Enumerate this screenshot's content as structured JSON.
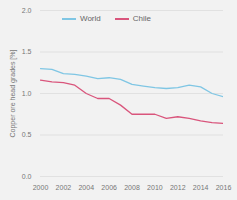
{
  "chart_data": {
    "type": "line",
    "x": [
      2000,
      2001,
      2002,
      2003,
      2004,
      2005,
      2006,
      2007,
      2008,
      2009,
      2010,
      2011,
      2012,
      2013,
      2014,
      2015,
      2016
    ],
    "series": [
      {
        "name": "World",
        "color": "#7fc6e4",
        "values": [
          1.3,
          1.29,
          1.24,
          1.23,
          1.21,
          1.18,
          1.19,
          1.17,
          1.11,
          1.09,
          1.07,
          1.06,
          1.07,
          1.1,
          1.08,
          1.0,
          0.96
        ]
      },
      {
        "name": "Chile",
        "color": "#d9557c",
        "values": [
          1.16,
          1.14,
          1.13,
          1.1,
          1.0,
          0.94,
          0.94,
          0.86,
          0.75,
          0.75,
          0.75,
          0.7,
          0.72,
          0.7,
          0.67,
          0.65,
          0.64
        ]
      }
    ],
    "y_label": "Copper ore head grades [%]",
    "xlim": [
      2000,
      2016
    ],
    "xticks": [
      2000,
      2002,
      2004,
      2006,
      2008,
      2010,
      2012,
      2014,
      2016
    ],
    "ylim": [
      0,
      2
    ],
    "yticks": [
      {
        "value": 0,
        "label": "0.0"
      },
      {
        "value": 0.5,
        "label": "0.5"
      },
      {
        "value": 1,
        "label": "1.0"
      },
      {
        "value": 1.5,
        "label": "1.5"
      },
      {
        "value": 2,
        "label": "2.0"
      }
    ],
    "grid": true,
    "legend": "top"
  }
}
